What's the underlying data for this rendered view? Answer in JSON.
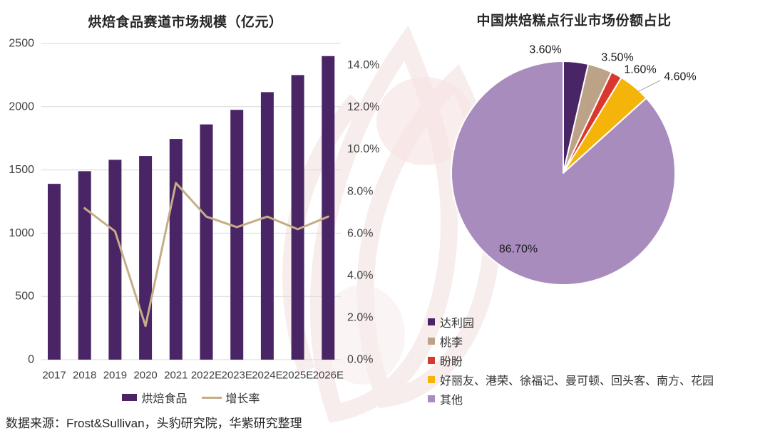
{
  "source_note": "数据来源：Frost&Sullivan，头豹研究院，华紫研究整理",
  "colors": {
    "bar": "#4A2566",
    "line": "#C6AD86",
    "grid": "#D9D9D9",
    "leader": "#A6A6A6",
    "watermark": "#F8EDED",
    "pie": [
      "#4A2566",
      "#BCA387",
      "#D9382E",
      "#F5B40A",
      "#A98CBE"
    ]
  },
  "chart_data": [
    {
      "type": "bar",
      "title": "烘焙食品赛道市场规模（亿元）",
      "categories": [
        "2017",
        "2018",
        "2019",
        "2020",
        "2021",
        "2022E",
        "2023E",
        "2024E",
        "2025E",
        "2026E"
      ],
      "series": [
        {
          "name": "烘焙食品",
          "type": "bar",
          "axis": "left",
          "values": [
            1390,
            1490,
            1580,
            1610,
            1745,
            1860,
            1975,
            2115,
            2250,
            2400
          ]
        },
        {
          "name": "增长率",
          "type": "line",
          "axis": "right",
          "start_category_index": 1,
          "values": [
            7.2,
            6.1,
            1.6,
            8.4,
            6.8,
            6.3,
            6.8,
            6.2,
            6.8
          ]
        }
      ],
      "left_axis": {
        "min": 0,
        "max": 2500,
        "step": 500,
        "ticks": [
          "0",
          "500",
          "1000",
          "1500",
          "2000",
          "2500"
        ]
      },
      "right_axis": {
        "min": 0,
        "max": 14,
        "step": 2,
        "ticks": [
          "0.0%",
          "2.0%",
          "4.0%",
          "6.0%",
          "8.0%",
          "10.0%",
          "12.0%",
          "14.0%"
        ]
      },
      "legend": [
        "烘焙食品",
        "增长率"
      ],
      "grid": true,
      "legend_position": "bottom-center"
    },
    {
      "type": "pie",
      "title": "中国烘焙糕点行业市场份额占比",
      "slices": [
        {
          "label": "达利园",
          "value": 3.6,
          "display": "3.60%"
        },
        {
          "label": "桃李",
          "value": 3.5,
          "display": "3.50%"
        },
        {
          "label": "盼盼",
          "value": 1.6,
          "display": "1.60%"
        },
        {
          "label": "好丽友、港荣、徐福记、曼可顿、回头客、南方、花园",
          "value": 4.6,
          "display": "4.60%"
        },
        {
          "label": "其他",
          "value": 86.7,
          "display": "86.70%"
        }
      ],
      "start_angle_deg": 0,
      "direction": "clockwise",
      "legend_position": "bottom-left"
    }
  ]
}
